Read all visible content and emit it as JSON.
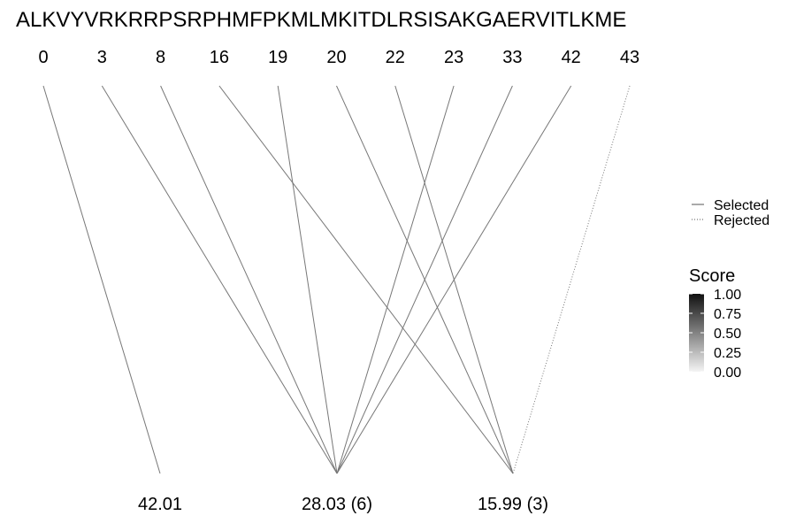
{
  "chart_data": {
    "type": "diagram",
    "sequence": "ALKVYVRKRRPSRPHMFPKMLMKITDLRSISAKGAERVITLKME",
    "positions": [
      0,
      3,
      8,
      16,
      19,
      20,
      22,
      23,
      33,
      42,
      43
    ],
    "bottom_nodes": [
      {
        "label": "42.01"
      },
      {
        "label": "28.03 (6)"
      },
      {
        "label": "15.99 (3)"
      }
    ],
    "links": [
      {
        "from": 0,
        "to": 0,
        "status": "selected"
      },
      {
        "from": 1,
        "to": 1,
        "status": "selected"
      },
      {
        "from": 2,
        "to": 1,
        "status": "selected"
      },
      {
        "from": 3,
        "to": 2,
        "status": "selected"
      },
      {
        "from": 4,
        "to": 1,
        "status": "selected"
      },
      {
        "from": 5,
        "to": 2,
        "status": "selected"
      },
      {
        "from": 6,
        "to": 2,
        "status": "selected"
      },
      {
        "from": 7,
        "to": 1,
        "status": "selected"
      },
      {
        "from": 8,
        "to": 1,
        "status": "selected"
      },
      {
        "from": 9,
        "to": 1,
        "status": "selected"
      },
      {
        "from": 10,
        "to": 2,
        "status": "rejected"
      }
    ],
    "legend": {
      "linetype": {
        "selected": "Selected",
        "rejected": "Rejected"
      },
      "score": {
        "title": "Score",
        "ticks": [
          "1.00",
          "0.75",
          "0.50",
          "0.25",
          "0.00"
        ]
      }
    },
    "colors": {
      "line": "#777777",
      "text": "#000000"
    }
  }
}
